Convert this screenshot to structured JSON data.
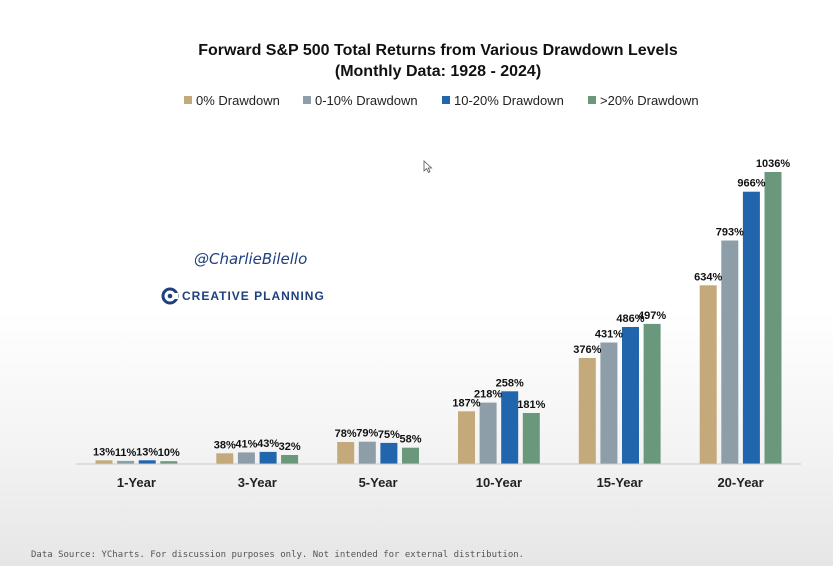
{
  "chart_data": {
    "type": "bar",
    "title": [
      "Forward S&P 500 Total Returns from Various Drawdown Levels",
      "(Monthly Data: 1928 - 2024)"
    ],
    "categories": [
      "1-Year",
      "3-Year",
      "5-Year",
      "10-Year",
      "15-Year",
      "20-Year"
    ],
    "series": [
      {
        "name": "0% Drawdown",
        "color": "#c4aa7b",
        "values": [
          13,
          38,
          78,
          187,
          376,
          634
        ]
      },
      {
        "name": "0-10% Drawdown",
        "color": "#8e9ea8",
        "values": [
          11,
          41,
          79,
          218,
          431,
          793
        ]
      },
      {
        "name": "10-20% Drawdown",
        "color": "#2166ac",
        "values": [
          13,
          43,
          75,
          258,
          486,
          966
        ]
      },
      {
        "name": ">20% Drawdown",
        "color": "#6a987d",
        "values": [
          10,
          32,
          58,
          181,
          497,
          1036
        ]
      }
    ],
    "value_suffix": "%",
    "ylim": [
      0,
      1036
    ],
    "grid": false,
    "legend_position": "top"
  },
  "watermark": {
    "handle": "@CharlieBilello",
    "brand": "CREATIVE PLANNING",
    "brand_color": "#1f3f7f"
  },
  "footer": {
    "source": "Data Source: YCharts. For discussion purposes only. Not intended for external distribution."
  }
}
